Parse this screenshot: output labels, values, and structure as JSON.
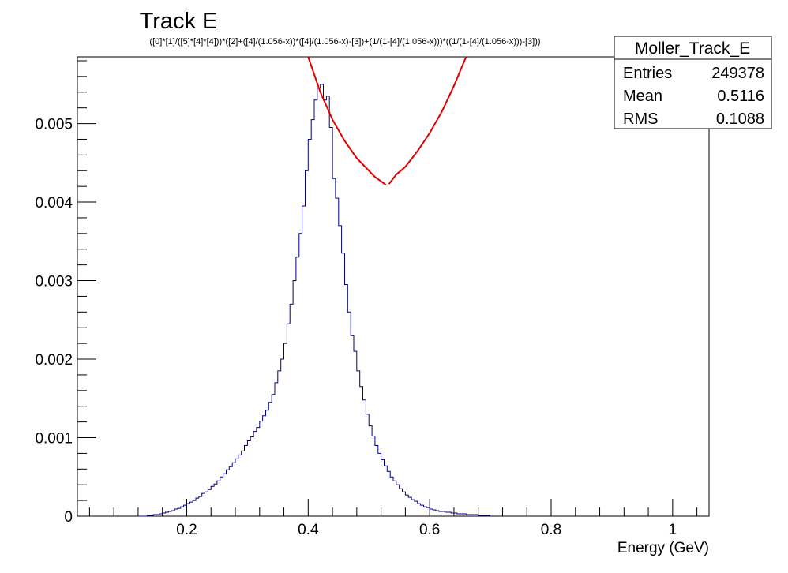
{
  "chart_data": {
    "type": "histogram",
    "title": "Track E",
    "subtitle": "([0]*[1]/([5]*[4]*[4]))*([2]+([4]/(1.056-x))*([4]/(1.056-x)-[3])+(1/(1-[4]/(1.056-x)))*((1/(1-[4]/(1.056-x)))-[3]))",
    "xlabel": "Energy (GeV)",
    "ylabel": "",
    "xlim": [
      0.02,
      1.06
    ],
    "ylim": [
      0,
      0.00585
    ],
    "x_ticks": [
      0.2,
      0.4,
      0.6,
      0.8,
      1
    ],
    "x_tick_labels": [
      "0.2",
      "0.4",
      "0.6",
      "0.8",
      "1"
    ],
    "y_ticks": [
      0,
      0.001,
      0.002,
      0.003,
      0.004,
      0.005
    ],
    "y_tick_labels": [
      "0",
      "0.001",
      "0.002",
      "0.003",
      "0.004",
      "0.005"
    ],
    "histogram": {
      "name": "Moller_Track_E",
      "color": "#000080",
      "bin_low": 0.12,
      "bin_width": 0.005,
      "values": [
        0.0,
        0.0,
        0.0,
        1e-05,
        1e-05,
        2e-05,
        2e-05,
        3e-05,
        4e-05,
        5e-05,
        6e-05,
        7e-05,
        9e-05,
        0.0001,
        0.00012,
        0.00014,
        0.00016,
        0.00018,
        0.0002,
        0.00023,
        0.00025,
        0.00029,
        0.00031,
        0.00034,
        0.00038,
        0.00041,
        0.00045,
        0.0005,
        0.00054,
        0.00059,
        0.00063,
        0.00068,
        0.00073,
        0.00078,
        0.00083,
        0.0009,
        0.00096,
        0.00101,
        0.00108,
        0.00113,
        0.00121,
        0.00128,
        0.00135,
        0.00145,
        0.00155,
        0.0017,
        0.00185,
        0.002,
        0.0022,
        0.00245,
        0.0027,
        0.003,
        0.0033,
        0.0036,
        0.00395,
        0.0044,
        0.0048,
        0.00505,
        0.0053,
        0.00545,
        0.0055,
        0.0053,
        0.00535,
        0.00495,
        0.0043,
        0.00405,
        0.0037,
        0.00335,
        0.00295,
        0.0026,
        0.0023,
        0.0021,
        0.00185,
        0.00165,
        0.00148,
        0.0013,
        0.00115,
        0.00102,
        0.0009,
        0.0008,
        0.00072,
        0.00064,
        0.00057,
        0.0005,
        0.00045,
        0.0004,
        0.00035,
        0.00031,
        0.00027,
        0.00024,
        0.00021,
        0.00019,
        0.00016,
        0.00014,
        0.00012,
        0.00011,
        9e-05,
        8e-05,
        7e-05,
        6e-05,
        6e-05,
        5e-05,
        5e-05,
        4e-05,
        4e-05,
        3e-05,
        3e-05,
        3e-05,
        2e-05,
        2e-05,
        2e-05,
        2e-05,
        1e-05,
        1e-05,
        1e-05,
        1e-05
      ]
    },
    "fit": {
      "color": "#e00000",
      "left_branch": {
        "x": [
          0.4,
          0.42,
          0.44,
          0.46,
          0.48,
          0.5,
          0.51,
          0.528
        ],
        "y": [
          0.00588,
          0.0054,
          0.00505,
          0.00478,
          0.00456,
          0.0044,
          0.00432,
          0.00422
        ]
      },
      "right_branch": {
        "x": [
          0.533,
          0.545,
          0.56,
          0.58,
          0.6,
          0.62,
          0.64,
          0.66
        ],
        "y": [
          0.00423,
          0.00435,
          0.00445,
          0.00465,
          0.00488,
          0.00515,
          0.00548,
          0.00588
        ]
      }
    },
    "stats_box": {
      "title": "Moller_Track_E",
      "rows": [
        {
          "label": "Entries",
          "value": "249378"
        },
        {
          "label": "Mean",
          "value": "0.5116"
        },
        {
          "label": "RMS",
          "value": "0.1088"
        }
      ]
    },
    "grid": false,
    "legend": "top-right"
  }
}
